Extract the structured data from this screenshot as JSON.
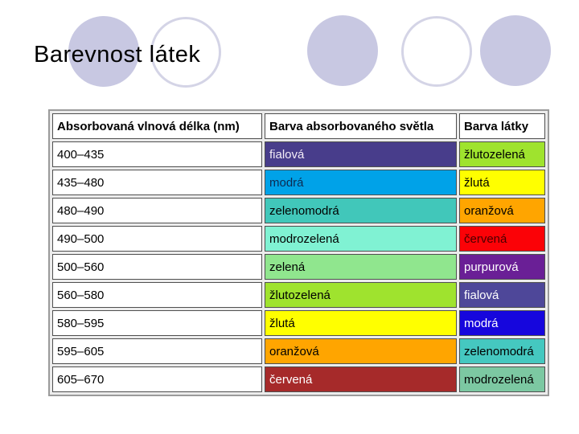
{
  "slide": {
    "title": "Barevnost látek",
    "background": "#ffffff",
    "decor": {
      "circle_fill": "#c8c8e2",
      "circle_stroke": "#d4d4e6"
    }
  },
  "table": {
    "headers": [
      "Absorbovaná vlnová délka (nm)",
      "Barva absorbovaného světla",
      "Barva látky"
    ],
    "rows": [
      {
        "range": "400–435",
        "absorbed": {
          "label": "fialová",
          "bg": "#483d8b",
          "fg": "#f3ecf7"
        },
        "substance": {
          "label": "žlutozelená",
          "bg": "#9fe32e",
          "fg": "#000000"
        }
      },
      {
        "range": "435–480",
        "absorbed": {
          "label": "modrá",
          "bg": "#00a2e8",
          "fg": "#0d2b52"
        },
        "substance": {
          "label": "žlutá",
          "bg": "#ffff00",
          "fg": "#000000"
        }
      },
      {
        "range": "480–490",
        "absorbed": {
          "label": "zelenomodrá",
          "bg": "#41c7ba",
          "fg": "#000000"
        },
        "substance": {
          "label": "oranžová",
          "bg": "#ffa500",
          "fg": "#000000"
        }
      },
      {
        "range": "490–500",
        "absorbed": {
          "label": "modrozelená",
          "bg": "#80f2d3",
          "fg": "#000000"
        },
        "substance": {
          "label": "červená",
          "bg": "#fb0207",
          "fg": "#4a0000"
        }
      },
      {
        "range": "500–560",
        "absorbed": {
          "label": "zelená",
          "bg": "#90e68e",
          "fg": "#000000"
        },
        "substance": {
          "label": "purpurová",
          "bg": "#6a1f96",
          "fg": "#ffffff"
        }
      },
      {
        "range": "560–580",
        "absorbed": {
          "label": "žlutozelená",
          "bg": "#9fe32e",
          "fg": "#000000"
        },
        "substance": {
          "label": "fialová",
          "bg": "#4e4799",
          "fg": "#ffffff"
        }
      },
      {
        "range": "580–595",
        "absorbed": {
          "label": "žlutá",
          "bg": "#ffff00",
          "fg": "#000000"
        },
        "substance": {
          "label": "modrá",
          "bg": "#1606dd",
          "fg": "#ffffff"
        }
      },
      {
        "range": "595–605",
        "absorbed": {
          "label": "oranžová",
          "bg": "#ffa500",
          "fg": "#000000"
        },
        "substance": {
          "label": "zelenomodrá",
          "bg": "#45c8c0",
          "fg": "#000000"
        }
      },
      {
        "range": "605–670",
        "absorbed": {
          "label": "červená",
          "bg": "#a62a2a",
          "fg": "#ffffff"
        },
        "substance": {
          "label": "modrozelená",
          "bg": "#7cc8a2",
          "fg": "#000000"
        }
      }
    ]
  }
}
